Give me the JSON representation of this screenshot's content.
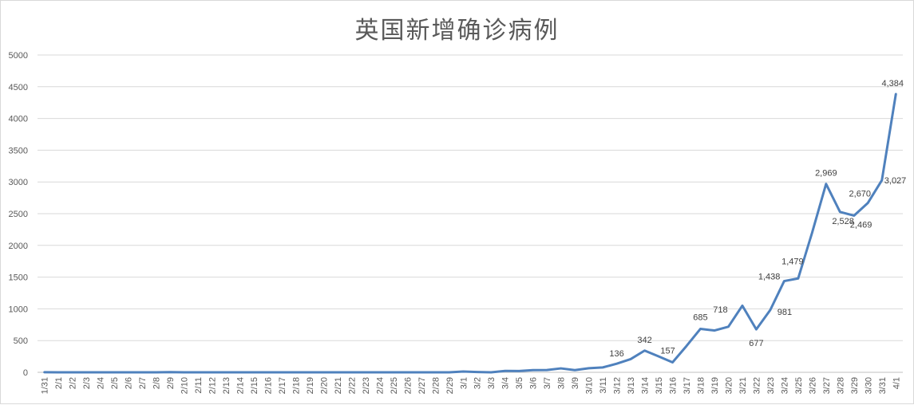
{
  "chart_data": {
    "type": "line",
    "title": "英国新增确诊病例",
    "xlabel": "",
    "ylabel": "",
    "ylim": [
      0,
      5000
    ],
    "yticks": [
      0,
      500,
      1000,
      1500,
      2000,
      2500,
      3000,
      3500,
      4000,
      4500,
      5000
    ],
    "grid": true,
    "color": "#4f81bd",
    "categories": [
      "1/31",
      "2/1",
      "2/2",
      "2/3",
      "2/4",
      "2/5",
      "2/6",
      "2/7",
      "2/8",
      "2/9",
      "2/10",
      "2/11",
      "2/12",
      "2/13",
      "2/14",
      "2/15",
      "2/16",
      "2/17",
      "2/18",
      "2/19",
      "2/20",
      "2/21",
      "2/22",
      "2/23",
      "2/24",
      "2/25",
      "2/26",
      "2/27",
      "2/28",
      "2/29",
      "3/1",
      "3/2",
      "3/3",
      "3/4",
      "3/5",
      "3/6",
      "3/7",
      "3/8",
      "3/9",
      "3/10",
      "3/11",
      "3/12",
      "3/13",
      "3/14",
      "3/15",
      "3/16",
      "3/17",
      "3/18",
      "3/19",
      "3/20",
      "3/21",
      "3/22",
      "3/23",
      "3/24",
      "3/25",
      "3/26",
      "3/27",
      "3/28",
      "3/29",
      "3/30",
      "3/31",
      "4/1"
    ],
    "values": [
      2,
      0,
      0,
      0,
      0,
      0,
      0,
      0,
      0,
      3,
      0,
      0,
      0,
      0,
      0,
      0,
      0,
      0,
      0,
      0,
      0,
      0,
      0,
      0,
      0,
      0,
      0,
      0,
      0,
      0,
      12,
      4,
      0,
      22,
      21,
      35,
      36,
      62,
      35,
      65,
      77,
      136,
      208,
      342,
      251,
      157,
      415,
      685,
      659,
      718,
      1050,
      677,
      981,
      1438,
      1479,
      2200,
      2969,
      2528,
      2469,
      2670,
      3027,
      4384
    ],
    "data_labels": [
      {
        "category": "3/12",
        "text": "136"
      },
      {
        "category": "3/14",
        "text": "342"
      },
      {
        "category": "3/16",
        "text": "157"
      },
      {
        "category": "3/18",
        "text": "685"
      },
      {
        "category": "3/20",
        "text": "718"
      },
      {
        "category": "3/22",
        "text": "677"
      },
      {
        "category": "3/23",
        "text": "981"
      },
      {
        "category": "3/24",
        "text": "1,438"
      },
      {
        "category": "3/25",
        "text": "1,479"
      },
      {
        "category": "3/27",
        "text": "2,969"
      },
      {
        "category": "3/28",
        "text": "2,528"
      },
      {
        "category": "3/29",
        "text": "2,469"
      },
      {
        "category": "3/30",
        "text": "2,670"
      },
      {
        "category": "3/31",
        "text": "3,027"
      },
      {
        "category": "4/1",
        "text": "4,384"
      }
    ]
  }
}
